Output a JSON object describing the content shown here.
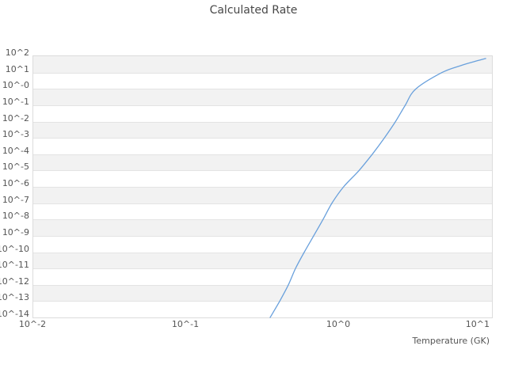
{
  "title": "Calculated Rate",
  "colors": {
    "line": "#69A0DC",
    "band_gray": "#f2f2f2",
    "band_white": "#ffffff",
    "gridline": "#e3e3e3",
    "plot_border": "#dcdcdc",
    "tick_label": "#555555",
    "title_text": "#484848"
  },
  "chart_data": {
    "type": "line",
    "title": "Calculated Rate",
    "xlabel": "Temperature (GK)",
    "ylabel": "",
    "x_scale": "log",
    "y_scale": "log",
    "xlim": [
      0.01,
      10
    ],
    "ylim": [
      1e-14,
      100
    ],
    "x_tick_labels": [
      "10^-2",
      "10^-1",
      "10^0",
      "10^1"
    ],
    "y_tick_labels": [
      "10^2",
      "10^1",
      "10^-0",
      "10^-1",
      "10^-2",
      "10^-3",
      "10^-4",
      "10^-5",
      "10^-6",
      "10^-7",
      "10^-8",
      "10^-9",
      "10^-10",
      "10^-11",
      "10^-12",
      "10^-13",
      "10^-14"
    ],
    "grid": "horizontal-decade-bands",
    "legend": "none",
    "series": [
      {
        "name": "calculated_rate",
        "color": "#69A0DC",
        "points": [
          [
            0.354,
            1e-14
          ],
          [
            0.409,
            1e-13
          ],
          [
            0.466,
            1e-12
          ],
          [
            0.519,
            1e-11
          ],
          [
            0.592,
            1e-10
          ],
          [
            0.682,
            1e-09
          ],
          [
            0.785,
            1e-08
          ],
          [
            0.898,
            1e-07
          ],
          [
            1.07,
            1e-06
          ],
          [
            1.35,
            1e-05
          ],
          [
            1.65,
            0.0001
          ],
          [
            1.98,
            0.001
          ],
          [
            2.34,
            0.01
          ],
          [
            2.71,
            0.1
          ],
          [
            3.18,
            1.0
          ],
          [
            4.71,
            10.0
          ],
          [
            6.2,
            26.0
          ],
          [
            7.6,
            46.0
          ],
          [
            9.1,
            72.0
          ]
        ]
      }
    ]
  }
}
